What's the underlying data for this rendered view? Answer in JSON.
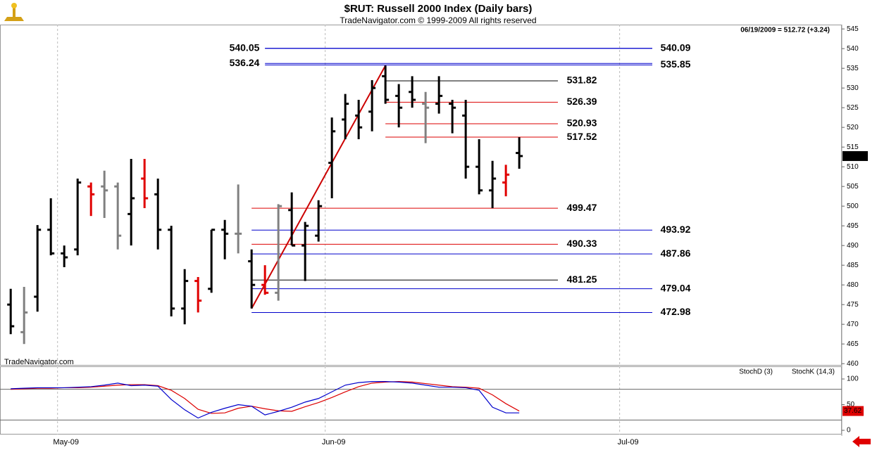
{
  "chart_data": [
    {
      "type": "ohlc",
      "title": "$RUT:  Russell 2000 Index  (Daily bars)",
      "subtitle": "TradeNavigator.com © 1999-2009 All rights reserved",
      "status": "06/19/2009 = 512.72 (+3.24)",
      "watermark": "TradeNavigator.com",
      "xlim": [
        -0.8,
        62.1
      ],
      "xticks": [
        {
          "value": 3.5,
          "label": "May-09"
        },
        {
          "value": 23.5,
          "label": "Jun-09"
        },
        {
          "value": 45.5,
          "label": "Jul-09"
        }
      ],
      "ylim": [
        459.5,
        546.1
      ],
      "yticks": [
        460,
        465,
        470,
        475,
        480,
        485,
        490,
        495,
        500,
        505,
        510,
        515,
        520,
        525,
        530,
        535,
        540,
        545
      ],
      "open": [
        475,
        468,
        477,
        494,
        488,
        489,
        505,
        505,
        505,
        498,
        507,
        503,
        494,
        474,
        481,
        479,
        494,
        493,
        486,
        480,
        478,
        499,
        490,
        492.5,
        511,
        522,
        523,
        524,
        533,
        528,
        529,
        526,
        526,
        526,
        523,
        510,
        504,
        506,
        513.5
      ],
      "high": [
        479,
        479.5,
        495.2,
        502,
        490,
        507,
        506,
        509,
        506,
        512,
        512,
        507,
        495,
        484,
        482,
        494,
        496.5,
        505.5,
        489,
        485,
        500.5,
        503.5,
        496,
        501.5,
        522.5,
        528.5,
        527,
        532,
        535.7,
        531,
        533,
        529,
        533,
        527,
        527,
        517,
        511.5,
        510.5,
        517.5
      ],
      "low": [
        467.5,
        465,
        473.2,
        487.5,
        484.5,
        487.5,
        497.5,
        497,
        489,
        490,
        499.5,
        489,
        472,
        470,
        473,
        478,
        486.5,
        488,
        474,
        477.5,
        476,
        490,
        481,
        491,
        502,
        517,
        517,
        519,
        526,
        520,
        525,
        516,
        523.5,
        518.5,
        507,
        503,
        499.5,
        502.5,
        509.5
      ],
      "close": [
        469.5,
        473,
        494,
        488,
        487,
        506,
        503,
        504,
        492.5,
        502,
        502,
        494,
        474,
        481,
        476,
        494,
        493,
        493,
        480,
        478,
        500,
        490,
        495,
        500,
        519,
        526,
        520,
        530,
        527,
        525,
        527,
        525,
        528,
        525,
        510,
        504,
        507,
        508,
        512.72
      ],
      "colors": [
        "#000",
        "#808080",
        "#000",
        "#000",
        "#000",
        "#000",
        "#e00000",
        "#808080",
        "#808080",
        "#000",
        "#e00000",
        "#000",
        "#000",
        "#000",
        "#e00000",
        "#000",
        "#000",
        "#808080",
        "#000",
        "#e00000",
        "#808080",
        "#000",
        "#000",
        "#000",
        "#000",
        "#000",
        "#000",
        "#000",
        "#000",
        "#000",
        "#000",
        "#808080",
        "#000",
        "#000",
        "#000",
        "#000",
        "#000",
        "#e00000",
        "#000"
      ],
      "levels": [
        {
          "value": 540.05,
          "color": "#0000cc",
          "side": "left"
        },
        {
          "value": 540.09,
          "color": "#0000cc",
          "side": "right"
        },
        {
          "value": 536.24,
          "color": "#0000cc",
          "side": "left"
        },
        {
          "value": 535.85,
          "color": "#0000cc",
          "side": "right"
        },
        {
          "value": 531.82,
          "color": "#000000",
          "side": "right"
        },
        {
          "value": 526.39,
          "color": "#dd0000",
          "side": "right"
        },
        {
          "value": 520.93,
          "color": "#dd0000",
          "side": "right"
        },
        {
          "value": 517.52,
          "color": "#dd0000",
          "side": "right"
        },
        {
          "value": 499.47,
          "color": "#dd0000",
          "side": "right"
        },
        {
          "value": 493.92,
          "color": "#0000cc",
          "side": "right"
        },
        {
          "value": 490.33,
          "color": "#dd0000",
          "side": "right"
        },
        {
          "value": 487.86,
          "color": "#0000cc",
          "side": "right"
        },
        {
          "value": 481.25,
          "color": "#000000",
          "side": "right"
        },
        {
          "value": 479.04,
          "color": "#0000cc",
          "side": "right"
        },
        {
          "value": 472.98,
          "color": "#0000cc",
          "side": "right"
        }
      ],
      "trendline": {
        "x": [
          18,
          28
        ],
        "y": [
          474,
          535.7
        ],
        "color": "#cc0000"
      }
    },
    {
      "type": "line",
      "ylim": [
        -8.2,
        123.3
      ],
      "yticks": [
        0,
        50,
        100
      ],
      "levels": [
        20,
        80
      ],
      "series": [
        {
          "name": "StochD (3)",
          "color": "#dd0000",
          "values": [
            80,
            81,
            82,
            82,
            83,
            83,
            84,
            86,
            88,
            89,
            89,
            87,
            78,
            62,
            41,
            33,
            34,
            43,
            47,
            42,
            38,
            37,
            46,
            54,
            64,
            75,
            85,
            92,
            94,
            95,
            94,
            91,
            88,
            85,
            84,
            82,
            69,
            52,
            37.62
          ]
        },
        {
          "name": "StochK (14,3)",
          "color": "#0000cc",
          "values": [
            81,
            82,
            83,
            83,
            83,
            84,
            85,
            88,
            92,
            87,
            88,
            86,
            60,
            40,
            24,
            35,
            43,
            50,
            47,
            30,
            37,
            45,
            55,
            62,
            75,
            88,
            93,
            95,
            95,
            94,
            92,
            88,
            84,
            84,
            83,
            78,
            45,
            34,
            34
          ]
        }
      ]
    }
  ]
}
